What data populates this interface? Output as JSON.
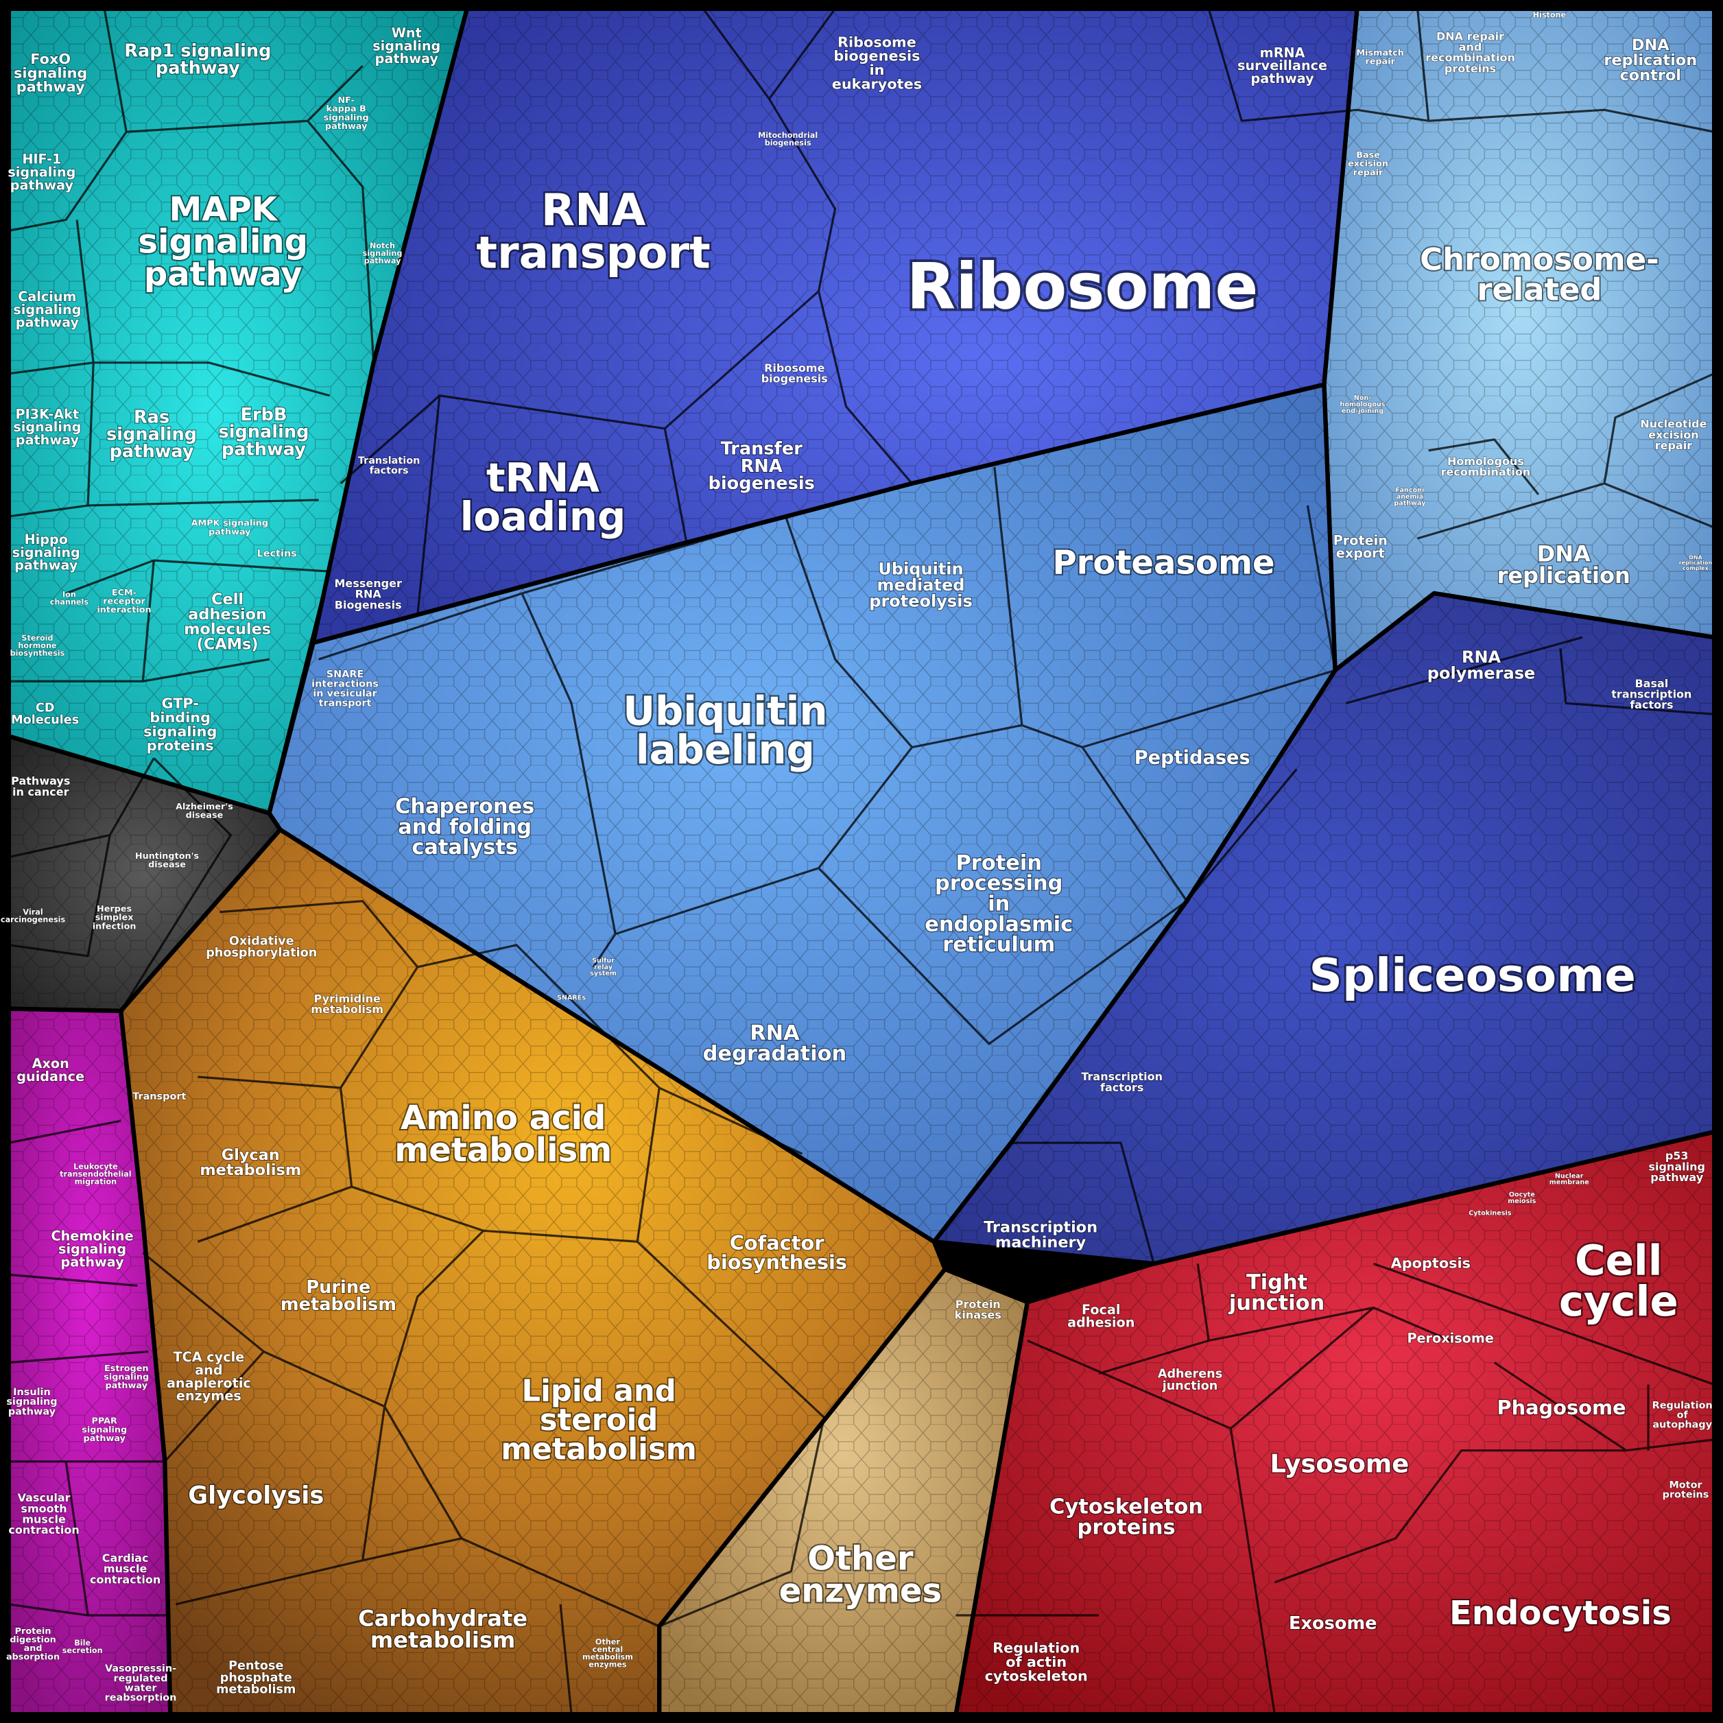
{
  "labels": [
    [
      "FoxO",
      "signaling",
      "pathway"
    ],
    [
      "Rap1 signaling",
      "pathway"
    ],
    [
      "Wnt",
      "signaling",
      "pathway"
    ],
    [
      "NF-",
      "kappa B",
      "signaling",
      "pathway"
    ],
    [
      "HIF-1",
      "signaling",
      "pathway"
    ],
    [
      "MAPK",
      "signaling",
      "pathway"
    ],
    [
      "Calcium",
      "signaling",
      "pathway"
    ],
    [
      "Notch",
      "signaling",
      "pathway"
    ],
    [
      "PI3K-Akt",
      "signaling",
      "pathway"
    ],
    [
      "Ras",
      "signaling",
      "pathway"
    ],
    [
      "ErbB",
      "signaling",
      "pathway"
    ],
    [
      "AMPK signaling",
      "pathway"
    ],
    [
      "Hippo",
      "signaling",
      "pathway"
    ],
    [
      "Lectins"
    ],
    [
      "Ion",
      "channels"
    ],
    [
      "ECM-",
      "receptor",
      "interaction"
    ],
    [
      "Cell",
      "adhesion",
      "molecules",
      "(CAMs)"
    ],
    [
      "Steroid",
      "hormone",
      "biosynthesis"
    ],
    [
      "CD",
      "Molecules"
    ],
    [
      "GTP-",
      "binding",
      "signaling",
      "proteins"
    ],
    [
      "Pathways",
      "in cancer"
    ],
    [
      "Alzheimer's",
      "disease"
    ],
    [
      "Huntington's",
      "disease"
    ],
    [
      "Herpes",
      "simplex",
      "infection"
    ],
    [
      "Viral",
      "carcinogenesis"
    ],
    [
      "Axon",
      "guidance"
    ],
    [
      "Leukocyte",
      "transendothelial",
      "migration"
    ],
    [
      "Chemokine",
      "signaling",
      "pathway"
    ],
    [
      "Estrogen",
      "signaling",
      "pathway"
    ],
    [
      "Insulin",
      "signaling",
      "pathway"
    ],
    [
      "PPAR",
      "signaling",
      "pathway"
    ],
    [
      "Vascular",
      "smooth",
      "muscle",
      "contraction"
    ],
    [
      "Cardiac",
      "muscle",
      "contraction"
    ],
    [
      "Protein",
      "digestion",
      "and",
      "absorption"
    ],
    [
      "Bile",
      "secretion"
    ],
    [
      "Vasopressin-",
      "regulated",
      "water",
      "reabsorption"
    ],
    [
      "Oxidative",
      "phosphorylation"
    ],
    [
      "Pyrimidine",
      "metabolism"
    ],
    [
      "Transport"
    ],
    [
      "Glycan",
      "metabolism"
    ],
    [
      "Amino acid",
      "metabolism"
    ],
    [
      "Cofactor",
      "biosynthesis"
    ],
    [
      "Purine",
      "metabolism"
    ],
    [
      "TCA cycle",
      "and",
      "anaplerotic",
      "enzymes"
    ],
    [
      "Lipid and",
      "steroid",
      "metabolism"
    ],
    [
      "Glycolysis"
    ],
    [
      "Carbohydrate",
      "metabolism"
    ],
    [
      "Other",
      "central",
      "metabolism",
      "enzymes"
    ],
    [
      "Pentose",
      "phosphate",
      "metabolism"
    ],
    [
      "Protein",
      "kinases"
    ],
    [
      "Other",
      "enzymes"
    ],
    [
      "RNA",
      "transport"
    ],
    [
      "Ribosome",
      "biogenesis",
      "in",
      "eukaryotes"
    ],
    [
      "Mitochondrial",
      "biogenesis"
    ],
    [
      "mRNA",
      "surveillance",
      "pathway"
    ],
    [
      "Ribosome"
    ],
    [
      "Ribosome",
      "biogenesis"
    ],
    [
      "Translation",
      "factors"
    ],
    [
      "tRNA",
      "loading"
    ],
    [
      "Transfer",
      "RNA",
      "biogenesis"
    ],
    [
      "Messenger",
      "RNA",
      "Biogenesis"
    ],
    [
      "Ubiquitin",
      "mediated",
      "proteolysis"
    ],
    [
      "Proteasome"
    ],
    [
      "Protein",
      "export"
    ],
    [
      "SNARE",
      "interactions",
      "in vesicular",
      "transport"
    ],
    [
      "Ubiquitin",
      "labeling"
    ],
    [
      "Chaperones",
      "and folding",
      "catalysts"
    ],
    [
      "Peptidases"
    ],
    [
      "Protein",
      "processing",
      "in",
      "endoplasmic",
      "reticulum"
    ],
    [
      "Sulfur",
      "relay",
      "system"
    ],
    [
      "SNAREs"
    ],
    [
      "RNA",
      "degradation"
    ],
    [
      "Transcription",
      "factors"
    ],
    [
      "Transcription",
      "machinery"
    ],
    [
      "Spliceosome"
    ],
    [
      "RNA",
      "polymerase"
    ],
    [
      "Basal",
      "transcription",
      "factors"
    ],
    [
      "Mismatch",
      "repair"
    ],
    [
      "DNA repair",
      "and",
      "recombination",
      "proteins"
    ],
    [
      "Histone"
    ],
    [
      "DNA",
      "replication",
      "control"
    ],
    [
      "Base",
      "excision",
      "repair"
    ],
    [
      "Chromosome-",
      "related"
    ],
    [
      "Non-",
      "homologous",
      "end-joining"
    ],
    [
      "Nucleotide",
      "excision",
      "repair"
    ],
    [
      "Homologous",
      "recombination"
    ],
    [
      "Fanconi",
      "anemia",
      "pathway"
    ],
    [
      "DNA",
      "replication"
    ],
    [
      "DNA",
      "replication",
      "complex"
    ],
    [
      "p53",
      "signaling",
      "pathway"
    ],
    [
      "Nuclear",
      "membrane"
    ],
    [
      "Oocyte",
      "meiosis"
    ],
    [
      "Cytokinesis"
    ],
    [
      "Apoptosis"
    ],
    [
      "Cell",
      "cycle"
    ],
    [
      "Tight",
      "junction"
    ],
    [
      "Focal",
      "adhesion"
    ],
    [
      "Peroxisome"
    ],
    [
      "Adherens",
      "junction"
    ],
    [
      "Phagosome"
    ],
    [
      "Regulation",
      "of",
      "autophagy"
    ],
    [
      "Lysosome"
    ],
    [
      "Cytoskeleton",
      "proteins"
    ],
    [
      "Motor",
      "proteins"
    ],
    [
      "Exosome"
    ],
    [
      "Endocytosis"
    ],
    [
      "Regulation",
      "of actin",
      "cytoskeleton"
    ]
  ]
}
